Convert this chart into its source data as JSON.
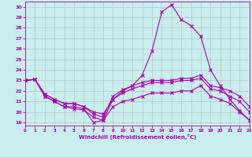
{
  "xlabel": "Windchill (Refroidissement éolien,°C)",
  "background_color": "#c8eeed",
  "line_color": "#aa00aa",
  "grid_color": "#b0b0b0",
  "x_ticks": [
    0,
    1,
    2,
    3,
    4,
    5,
    6,
    7,
    8,
    9,
    10,
    11,
    12,
    13,
    14,
    15,
    16,
    17,
    18,
    19,
    20,
    21,
    22,
    23
  ],
  "y_ticks": [
    19,
    20,
    21,
    22,
    23,
    24,
    25,
    26,
    27,
    28,
    29,
    30
  ],
  "xlim": [
    0,
    23
  ],
  "ylim": [
    18.7,
    30.5
  ],
  "line_peak": [
    23.0,
    23.1,
    21.5,
    21.0,
    20.5,
    20.5,
    20.3,
    19.0,
    19.2,
    21.2,
    22.0,
    22.5,
    23.5,
    25.8,
    29.5,
    30.2,
    28.8,
    28.2,
    27.2,
    24.0,
    22.5,
    21.2,
    20.1,
    19.2
  ],
  "line_mid1": [
    23.0,
    23.1,
    21.7,
    21.2,
    20.8,
    20.8,
    20.5,
    19.8,
    19.5,
    21.5,
    22.1,
    22.5,
    22.8,
    23.0,
    23.0,
    23.0,
    23.2,
    23.2,
    23.5,
    22.5,
    22.3,
    22.0,
    21.5,
    20.5
  ],
  "line_mid2": [
    23.0,
    23.1,
    21.7,
    21.2,
    20.8,
    20.8,
    20.5,
    20.0,
    19.8,
    21.2,
    21.8,
    22.2,
    22.5,
    22.8,
    22.8,
    22.8,
    23.0,
    23.0,
    23.2,
    22.2,
    22.0,
    21.5,
    21.0,
    20.0
  ],
  "line_low": [
    23.0,
    23.1,
    21.5,
    21.0,
    20.5,
    20.3,
    20.2,
    19.5,
    19.2,
    20.5,
    21.0,
    21.2,
    21.5,
    21.8,
    21.8,
    21.8,
    22.0,
    22.0,
    22.5,
    21.5,
    21.2,
    20.8,
    20.0,
    19.2
  ]
}
